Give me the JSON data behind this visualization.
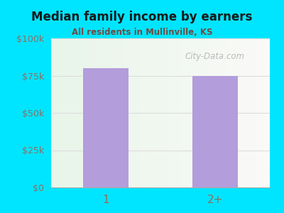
{
  "title": "Median family income by earners",
  "subtitle": "All residents in Mullinville, KS",
  "categories": [
    "1",
    "2+"
  ],
  "values": [
    80000,
    75000
  ],
  "bar_color": "#b39ddb",
  "background_outer": "#00e5ff",
  "title_color": "#1a1a1a",
  "subtitle_color": "#6d4c41",
  "tick_color": "#8d6e63",
  "ylim": [
    0,
    100000
  ],
  "yticks": [
    0,
    25000,
    50000,
    75000,
    100000
  ],
  "ytick_labels": [
    "$0",
    "$25k",
    "$50k",
    "$75k",
    "$100k"
  ],
  "watermark": "City-Data.com",
  "grid_color": "#dddddd"
}
